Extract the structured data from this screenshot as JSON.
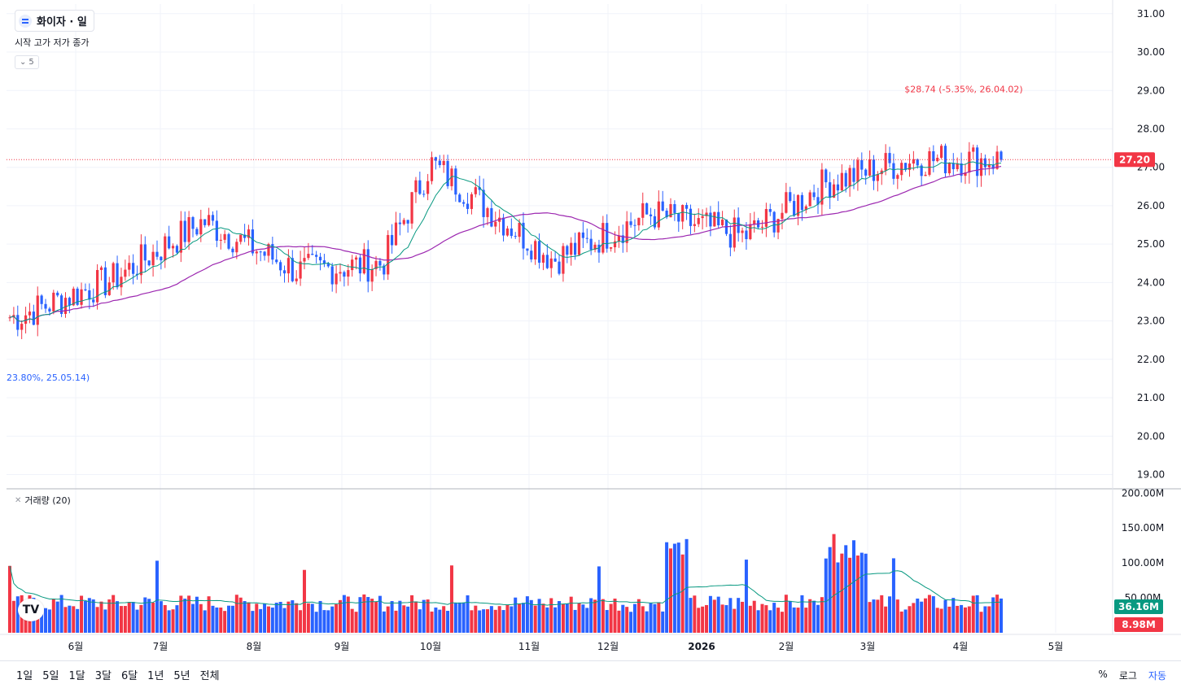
{
  "header": {
    "symbol": "화이자 · 일",
    "ohlc_labels": "시작 고가 저가 종가",
    "collapse_count": "5"
  },
  "volume_legend": {
    "label": "거래량 (20)"
  },
  "bottom_bar": {
    "ranges": [
      "1일",
      "5일",
      "1달",
      "3달",
      "6달",
      "1년",
      "5년",
      "전체"
    ],
    "percent": "%",
    "log": "로그",
    "auto": "자동"
  },
  "colors": {
    "up": "#f23645",
    "down": "#2962ff",
    "ma": "#089981",
    "bg": "#ffffff",
    "grid": "#f0f3fa"
  },
  "chart_data": {
    "type": "candlestick",
    "title": "화이자 · 일",
    "price_axis": {
      "ticks": [
        31.0,
        30.0,
        29.0,
        28.0,
        27.0,
        26.0,
        25.0,
        24.0,
        23.0,
        22.0,
        21.0,
        20.0,
        19.0
      ],
      "range": [
        18.65,
        31.25
      ]
    },
    "volume_axis": {
      "ticks": [
        "200.00M",
        "150.00M",
        "100.00M",
        "50.00M"
      ],
      "range": [
        0,
        205
      ]
    },
    "x_axis_labels": [
      "6월",
      "7월",
      "8월",
      "9월",
      "10월",
      "11월",
      "12월",
      "2026",
      "2월",
      "3월",
      "4월",
      "5월"
    ],
    "last_price": {
      "value": 27.2,
      "label": "27.20"
    },
    "volume_labels": {
      "volume_ma": "36.16M",
      "volume": "8.98M"
    },
    "annotations": {
      "high": {
        "text": "$28.74 (-5.35%, 26.04.02)",
        "price": 28.74
      },
      "low": {
        "text": "23.80%, 25.05.14)",
        "price": 22.0
      }
    },
    "monthly_closes": [
      {
        "month": "2025-05",
        "close": 23.1
      },
      {
        "month": "2025-06",
        "close": 24.1
      },
      {
        "month": "2025-07",
        "close": 25.6
      },
      {
        "month": "2025-08",
        "close": 24.3
      },
      {
        "month": "2025-09",
        "close": 24.5
      },
      {
        "month": "2025-10",
        "close": 27.1
      },
      {
        "month": "2025-11",
        "close": 24.6
      },
      {
        "month": "2025-12",
        "close": 25.8
      },
      {
        "month": "2026-01",
        "close": 25.2
      },
      {
        "month": "2026-02",
        "close": 26.6
      },
      {
        "month": "2026-03",
        "close": 27.2
      },
      {
        "month": "2026-04",
        "close": 27.2
      }
    ]
  }
}
